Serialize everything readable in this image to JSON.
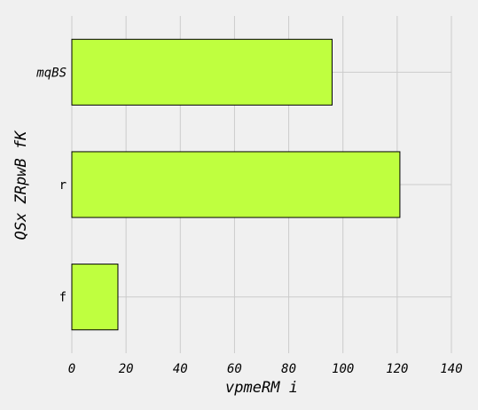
{
  "chart_data": {
    "type": "bar",
    "orientation": "horizontal",
    "categories": [
      "f",
      "r",
      "mqBS"
    ],
    "values": [
      17,
      121,
      96
    ],
    "xlabel": "vpmeRM i",
    "ylabel": "QSx ZRpwB fK",
    "xlim": [
      0,
      140
    ],
    "xticks": [
      "0",
      "20",
      "40",
      "60",
      "80",
      "100",
      "120",
      "140"
    ],
    "grid": true,
    "bar_color": "#bfff3f",
    "edge_color": "#000000",
    "background": "#f0f0f0"
  }
}
